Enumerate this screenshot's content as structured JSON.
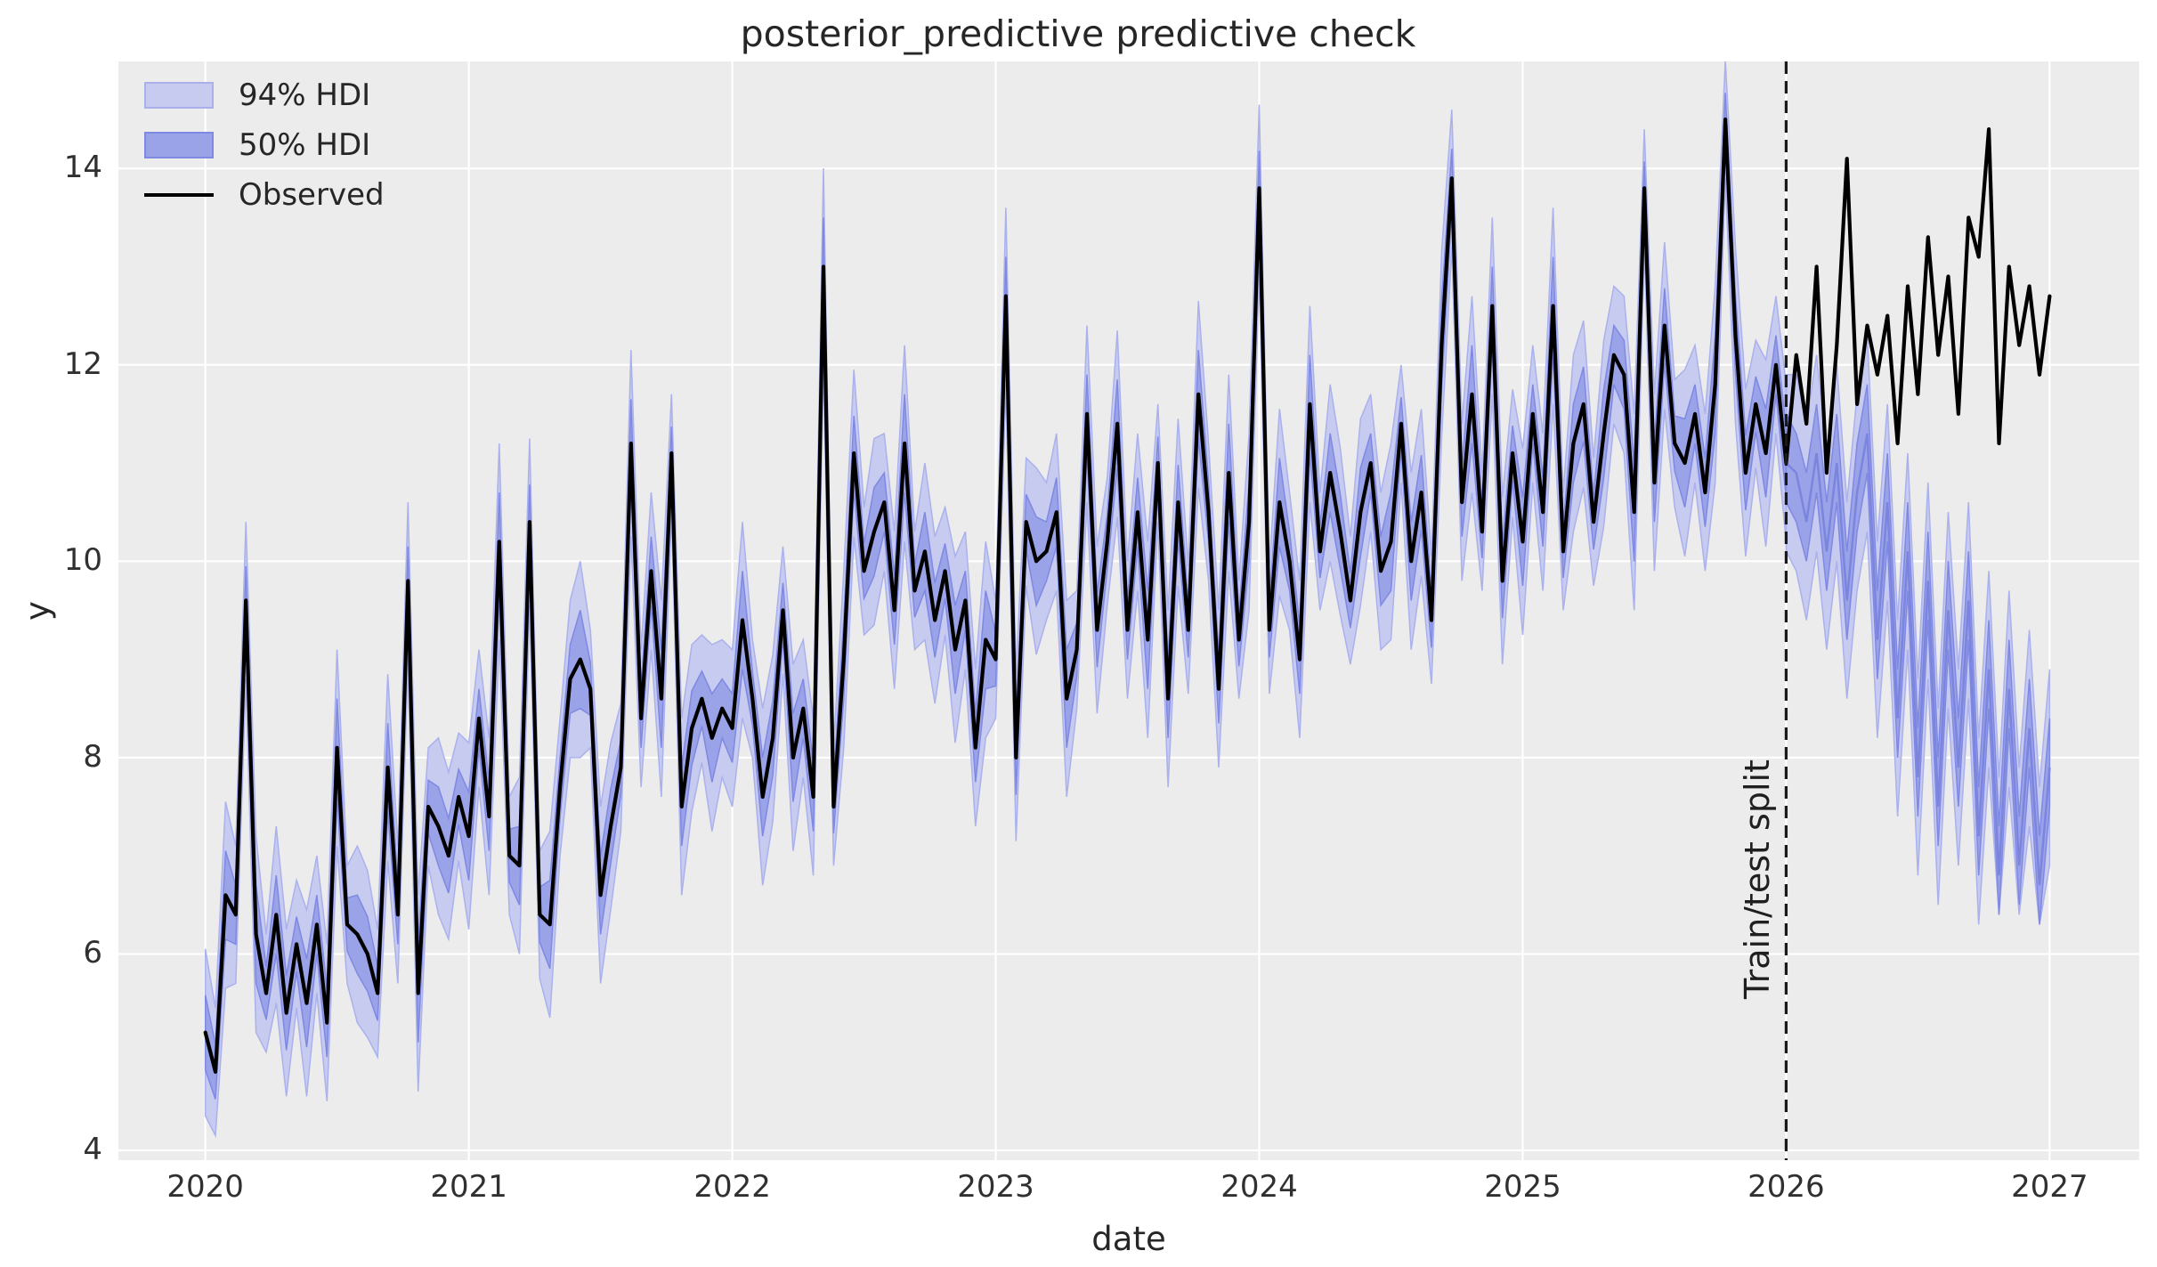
{
  "chart_data": {
    "type": "line",
    "title": "posterior_predictive predictive check",
    "xlabel": "date",
    "ylabel": "y",
    "xticks": [
      2020,
      2021,
      2022,
      2023,
      2024,
      2025,
      2026,
      2027
    ],
    "yticks": [
      4,
      6,
      8,
      10,
      12,
      14
    ],
    "xlim": [
      2019.67,
      2027.34
    ],
    "ylim": [
      3.9,
      15.09
    ],
    "grid": true,
    "legend_position": "upper left",
    "legend": [
      {
        "label": "94% HDI",
        "kind": "patch",
        "fill": "#c7cbf0",
        "border": "#a9b0ea"
      },
      {
        "label": "50% HDI",
        "kind": "patch",
        "fill": "#9aa2e8",
        "border": "#7f89e2"
      },
      {
        "label": "Observed",
        "kind": "line",
        "color": "#000000"
      }
    ],
    "split": {
      "x": 2026,
      "label": "Train/test split",
      "line_style": "dashed",
      "color": "#1a1a1a"
    },
    "colors": {
      "background": "#ececec",
      "gridline": "#ffffff",
      "band94_fill": "#c7cbf0",
      "band94_edge": "#aab1ec",
      "band50_fill": "#9aa2e8",
      "band50_edge": "#7f89e2",
      "median_line": "#7b85de",
      "observed_line": "#000000",
      "text": "#262626"
    },
    "series": {
      "x_start": 2020.0,
      "x_step": 0.0384615,
      "n": 183,
      "observed": [
        5.2,
        4.8,
        6.6,
        6.4,
        9.6,
        6.2,
        5.6,
        6.4,
        5.4,
        6.1,
        5.5,
        6.3,
        5.3,
        8.1,
        6.3,
        6.2,
        6.0,
        5.6,
        7.9,
        6.4,
        9.8,
        5.6,
        7.5,
        7.3,
        7.0,
        7.6,
        7.2,
        8.4,
        7.4,
        10.2,
        7.0,
        6.9,
        10.4,
        6.4,
        6.3,
        7.7,
        8.8,
        9.0,
        8.7,
        6.6,
        7.3,
        7.9,
        11.2,
        8.4,
        9.9,
        8.6,
        11.1,
        7.5,
        8.3,
        8.6,
        8.2,
        8.5,
        8.3,
        9.4,
        8.6,
        7.6,
        8.2,
        9.5,
        8.0,
        8.5,
        7.6,
        13.0,
        7.5,
        9.0,
        11.1,
        9.9,
        10.3,
        10.6,
        9.5,
        11.2,
        9.7,
        10.1,
        9.4,
        9.9,
        9.1,
        9.6,
        8.1,
        9.2,
        9.0,
        12.7,
        8.0,
        10.4,
        10.0,
        10.1,
        10.5,
        8.6,
        9.1,
        11.5,
        9.3,
        10.2,
        11.4,
        9.3,
        10.5,
        9.2,
        11.0,
        8.6,
        10.6,
        9.3,
        11.7,
        10.5,
        8.7,
        10.9,
        9.2,
        10.4,
        13.8,
        9.3,
        10.6,
        10.0,
        9.0,
        11.6,
        10.1,
        10.9,
        10.3,
        9.6,
        10.5,
        11.0,
        9.9,
        10.2,
        11.4,
        10.0,
        10.7,
        9.4,
        12.2,
        13.9,
        10.6,
        11.7,
        10.3,
        12.6,
        9.8,
        11.1,
        10.2,
        11.5,
        10.5,
        12.6,
        10.1,
        11.2,
        11.6,
        10.4,
        11.3,
        12.1,
        11.9,
        10.5,
        13.8,
        10.8,
        12.4,
        11.2,
        11.0,
        11.5,
        10.7,
        11.8,
        14.5,
        12.3,
        10.9,
        11.6,
        11.1,
        12.0,
        11.0,
        12.1,
        11.4,
        13.0,
        10.9,
        12.2,
        14.1,
        11.6,
        12.4,
        11.9,
        12.5,
        11.2,
        12.8,
        11.7,
        13.3,
        12.1,
        12.9,
        11.5,
        13.5,
        13.1,
        14.4,
        11.2,
        13.0,
        12.2,
        12.8,
        11.9,
        12.7
      ]
    },
    "hdi_train": {
      "index_range": [
        0,
        156
      ],
      "centered_on": "observed",
      "half_width_94_pattern": [
        0.85,
        0.65,
        0.95,
        0.7,
        0.8,
        1.0,
        0.6,
        0.9
      ],
      "half_width_50_pattern": [
        0.38,
        0.28,
        0.45,
        0.3,
        0.35,
        0.5,
        0.27,
        0.4
      ]
    },
    "hdi_test": {
      "start_index": 156,
      "median": [
        11.0,
        10.9,
        10.4,
        11.1,
        10.1,
        11.0,
        9.6,
        10.7,
        11.3,
        9.2,
        10.6,
        8.4,
        10.1,
        7.8,
        9.8,
        7.5,
        9.5,
        7.9,
        9.6,
        7.2,
        8.9,
        6.8,
        8.7,
        6.9,
        8.3,
        6.7,
        7.9
      ],
      "hdi94_high": [
        11.9,
        11.9,
        11.4,
        12.1,
        11.1,
        12.0,
        10.6,
        11.7,
        12.3,
        10.2,
        11.6,
        9.4,
        11.1,
        8.8,
        10.8,
        8.5,
        10.5,
        8.9,
        10.6,
        8.2,
        9.9,
        7.8,
        9.7,
        7.9,
        9.3,
        7.7,
        8.9
      ],
      "hdi94_low": [
        10.1,
        9.9,
        9.4,
        10.1,
        9.1,
        10.0,
        8.6,
        9.7,
        10.3,
        8.2,
        9.6,
        7.4,
        9.1,
        6.8,
        8.8,
        6.5,
        8.5,
        6.9,
        8.6,
        6.3,
        7.9,
        6.4,
        7.7,
        6.4,
        7.3,
        6.3,
        6.9
      ],
      "hdi50_high": [
        11.5,
        11.3,
        10.9,
        11.6,
        10.6,
        11.5,
        10.1,
        11.2,
        11.8,
        9.7,
        11.1,
        8.9,
        10.6,
        8.3,
        10.3,
        8.0,
        10.0,
        8.4,
        10.1,
        7.7,
        9.4,
        7.3,
        9.2,
        7.4,
        8.8,
        7.2,
        8.4
      ],
      "hdi50_low": [
        10.6,
        10.4,
        10.0,
        10.7,
        9.7,
        10.6,
        9.2,
        10.3,
        10.9,
        8.8,
        10.2,
        8.0,
        9.7,
        7.4,
        9.4,
        7.1,
        9.1,
        7.5,
        9.2,
        6.8,
        8.5,
        6.4,
        8.3,
        6.5,
        7.9,
        6.3,
        7.5
      ]
    }
  }
}
